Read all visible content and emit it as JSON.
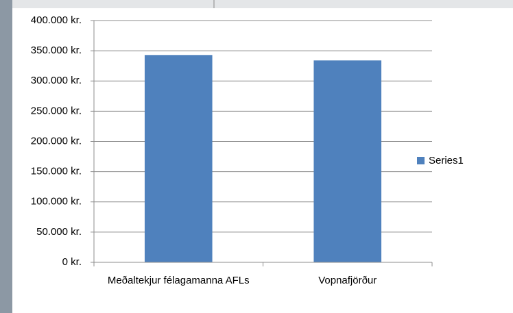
{
  "chart_data": {
    "type": "bar",
    "categories": [
      "Meðaltekjur félagamanna AFLs",
      "Vopnafjörður"
    ],
    "series": [
      {
        "name": "Series1",
        "color": "#4f81bd",
        "values": [
          343000,
          334000
        ]
      }
    ],
    "ylim": [
      0,
      400000
    ],
    "yticks": [
      {
        "value": 0,
        "label": "0 kr."
      },
      {
        "value": 50000,
        "label": "50.000 kr."
      },
      {
        "value": 100000,
        "label": "100.000 kr."
      },
      {
        "value": 150000,
        "label": "150.000 kr."
      },
      {
        "value": 200000,
        "label": "200.000 kr."
      },
      {
        "value": 250000,
        "label": "250.000 kr."
      },
      {
        "value": 300000,
        "label": "300.000 kr."
      },
      {
        "value": 350000,
        "label": "350.000 kr."
      },
      {
        "value": 400000,
        "label": "400.000 kr."
      }
    ],
    "grid": true,
    "legend": "right"
  }
}
